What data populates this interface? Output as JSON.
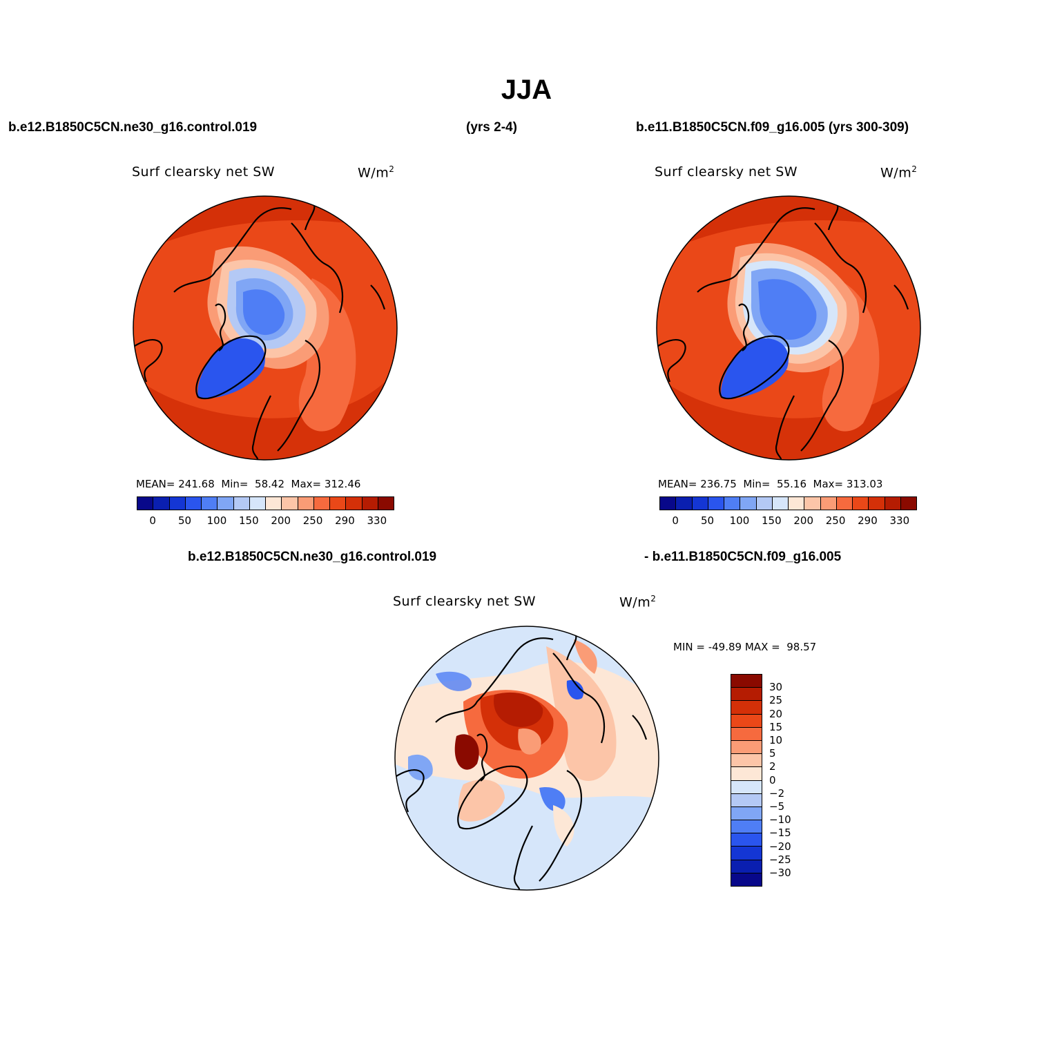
{
  "title": "JJA",
  "header": {
    "left": "b.e12.B1850C5CN.ne30_g16.control.019",
    "middle": "(yrs 2-4)",
    "right": "b.e11.B1850C5CN.f09_g16.005 (yrs 300-309)",
    "diff_left": "b.e12.B1850C5CN.ne30_g16.control.019",
    "diff_right": "- b.e11.B1850C5CN.f09_g16.005"
  },
  "panels": [
    {
      "id": "control-019",
      "variable": "Surf clearsky net SW",
      "units_base": "W/m",
      "units_exp": "2",
      "stats": {
        "mean_label": "MEAN=",
        "mean": "241.68",
        "min_label": "Min=",
        "min": "58.42",
        "max_label": "Max=",
        "max": "312.46"
      }
    },
    {
      "id": "f09-005",
      "variable": "Surf clearsky net SW",
      "units_base": "W/m",
      "units_exp": "2",
      "stats": {
        "mean_label": "MEAN=",
        "mean": "236.75",
        "min_label": "Min=",
        "min": "55.16",
        "max_label": "Max=",
        "max": "313.03"
      }
    },
    {
      "id": "difference",
      "variable": "Surf clearsky net SW",
      "units_base": "W/m",
      "units_exp": "2",
      "stats": {
        "min_label": "MIN =",
        "min": "-49.89",
        "max_label": "MAX =",
        "max": "98.57"
      }
    }
  ],
  "colorbar_abs": {
    "colors": [
      "#08088a",
      "#0a1fb0",
      "#1436d4",
      "#2a55ee",
      "#4f7ef5",
      "#80a6f5",
      "#b4c9f5",
      "#d6e6fa",
      "#fde7d6",
      "#fcc5a8",
      "#fa9c76",
      "#f66a3e",
      "#ea4818",
      "#d43008",
      "#b51c02",
      "#8a0a00"
    ],
    "tick_labels": [
      "0",
      "50",
      "100",
      "150",
      "200",
      "250",
      "290",
      "330"
    ]
  },
  "colorbar_diff": {
    "colors": [
      "#8a0a00",
      "#b51c02",
      "#d43008",
      "#ea4818",
      "#f66a3e",
      "#fa9c76",
      "#fcc5a8",
      "#fde7d6",
      "#d6e6fa",
      "#b4c9f5",
      "#80a6f5",
      "#4f7ef5",
      "#2a55ee",
      "#1436d4",
      "#0a1fb0",
      "#08088a"
    ],
    "tick_labels": [
      "30",
      "25",
      "20",
      "15",
      "10",
      "5",
      "2",
      "0",
      "−2",
      "−5",
      "−10",
      "−15",
      "−20",
      "−25",
      "−30"
    ]
  }
}
